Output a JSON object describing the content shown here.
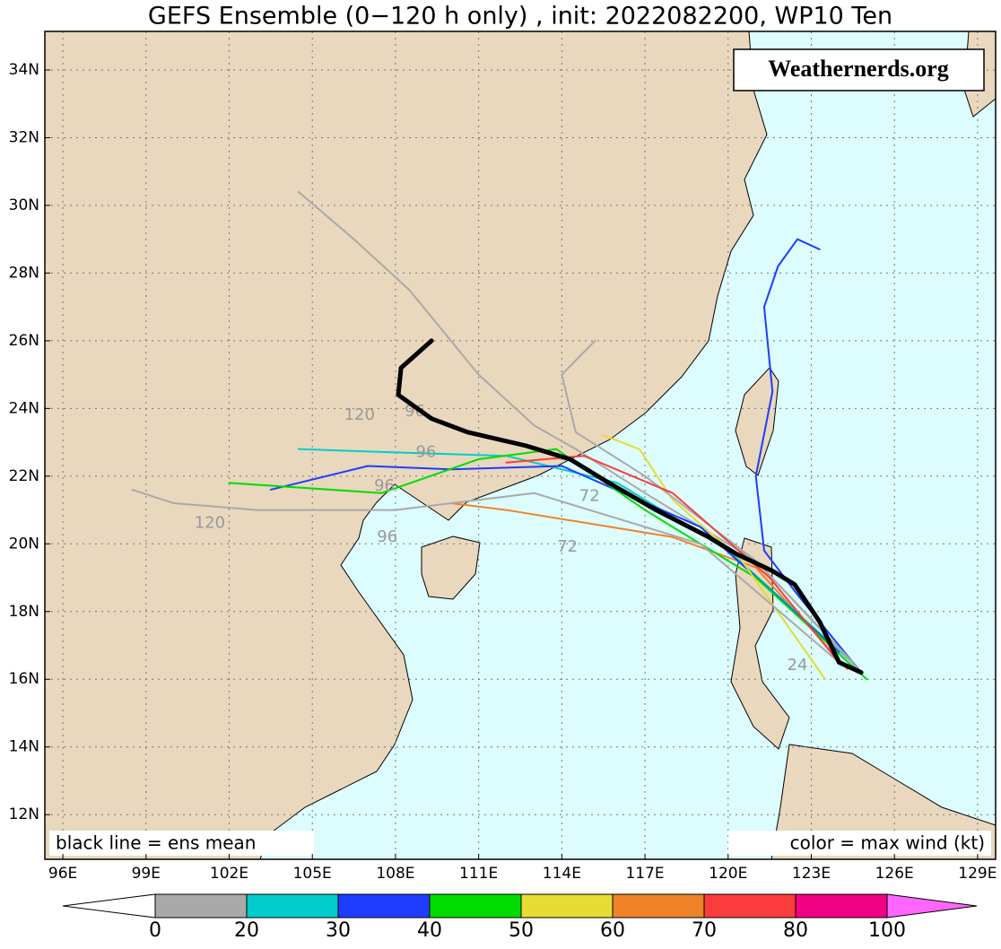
{
  "map": {
    "title": "GEFS Ensemble (0−120 h only) , init: 2022082200, WP10 Ten",
    "watermark": "Weathernerds.org",
    "note_left": "black line = ens mean",
    "note_right": "color = max wind (kt)",
    "xlim": [
      95.35,
      129.65
    ],
    "ylim": [
      10.68,
      35.14
    ],
    "xticks": [
      {
        "value": 96,
        "label": "96E"
      },
      {
        "value": 99,
        "label": "99E"
      },
      {
        "value": 102,
        "label": "102E"
      },
      {
        "value": 105,
        "label": "105E"
      },
      {
        "value": 108,
        "label": "108E"
      },
      {
        "value": 111,
        "label": "111E"
      },
      {
        "value": 114,
        "label": "114E"
      },
      {
        "value": 117,
        "label": "117E"
      },
      {
        "value": 120,
        "label": "120E"
      },
      {
        "value": 123,
        "label": "123E"
      },
      {
        "value": 126,
        "label": "126E"
      },
      {
        "value": 129,
        "label": "129E"
      }
    ],
    "yticks": [
      {
        "value": 12,
        "label": "12N"
      },
      {
        "value": 14,
        "label": "14N"
      },
      {
        "value": 16,
        "label": "16N"
      },
      {
        "value": 18,
        "label": "18N"
      },
      {
        "value": 20,
        "label": "20N"
      },
      {
        "value": 22,
        "label": "22N"
      },
      {
        "value": 24,
        "label": "24N"
      },
      {
        "value": 26,
        "label": "26N"
      },
      {
        "value": 28,
        "label": "28N"
      },
      {
        "value": 30,
        "label": "30N"
      },
      {
        "value": 32,
        "label": "32N"
      },
      {
        "value": 34,
        "label": "34N"
      }
    ],
    "grid": true,
    "mean_track": {
      "color": "#000000",
      "lon": [
        124.8,
        124.0,
        123.3,
        122.4,
        121.6,
        120.3,
        119.3,
        117.4,
        115.7,
        114.3,
        112.7,
        110.6,
        109.3,
        108.1,
        108.2,
        109.3
      ],
      "lat": [
        16.2,
        16.5,
        17.7,
        18.8,
        19.2,
        19.7,
        20.2,
        21.0,
        21.8,
        22.5,
        22.9,
        23.3,
        23.7,
        24.4,
        25.2,
        26.0
      ]
    },
    "members": [
      {
        "color": "#1e3cff",
        "lon": [
          124.8,
          122.5,
          121.3,
          121.0,
          121.6,
          121.3,
          121.8,
          122.5,
          123.3
        ],
        "lat": [
          16.2,
          18.5,
          19.8,
          22.0,
          24.5,
          27.0,
          28.2,
          29.0,
          28.7
        ]
      },
      {
        "color": "#a9a9a9",
        "lon": [
          124.5,
          121.0,
          117.0,
          114.5,
          113.0,
          111.0,
          108.5,
          106.5,
          104.5
        ],
        "lat": [
          16.5,
          19.5,
          21.5,
          22.8,
          23.5,
          25.0,
          27.5,
          29.0,
          30.4
        ]
      },
      {
        "color": "#f08228",
        "lon": [
          124.3,
          121.0,
          118.0,
          115.0,
          112.0,
          110.0
        ],
        "lat": [
          16.3,
          19.3,
          20.2,
          20.6,
          21.0,
          21.2
        ]
      },
      {
        "color": "#00cccc",
        "lon": [
          124.6,
          120.0,
          116.0,
          112.0,
          108.0,
          104.5
        ],
        "lat": [
          16.4,
          19.8,
          21.8,
          22.6,
          22.7,
          22.8
        ]
      },
      {
        "color": "#1e3cff",
        "lon": [
          124.0,
          119.0,
          114.0,
          110.0,
          107.0,
          103.5
        ],
        "lat": [
          16.8,
          20.5,
          22.3,
          22.2,
          22.3,
          21.6
        ]
      },
      {
        "color": "#00dc00",
        "lon": [
          125.0,
          121.0,
          117.0,
          113.8,
          111.0,
          107.5,
          102.0
        ],
        "lat": [
          16.0,
          19.0,
          21.0,
          22.8,
          22.5,
          21.5,
          21.8
        ]
      },
      {
        "color": "#e6dc32",
        "lon": [
          123.5,
          120.5,
          118.0,
          116.8,
          115.5
        ],
        "lat": [
          16.0,
          19.5,
          21.3,
          22.8,
          23.2
        ]
      },
      {
        "color": "#a9a9a9",
        "lon": [
          124.0,
          119.0,
          113.0,
          108.0,
          103.0,
          100.0,
          98.5
        ],
        "lat": [
          16.5,
          20.0,
          21.5,
          21.0,
          21.0,
          21.2,
          21.6
        ]
      },
      {
        "color": "#a9a9a9",
        "lon": [
          124.8,
          121.0,
          117.0,
          114.5,
          114.0,
          115.2
        ],
        "lat": [
          16.2,
          19.5,
          22.0,
          23.3,
          25.0,
          26.0
        ]
      },
      {
        "color": "#fa3c3c",
        "lon": [
          124.0,
          121.5,
          118.0,
          114.8,
          112.0
        ],
        "lat": [
          16.5,
          19.0,
          21.5,
          22.6,
          22.4
        ]
      }
    ],
    "hour_labels": [
      {
        "text": "120",
        "lon": 106.7,
        "lat": 23.8
      },
      {
        "text": "96",
        "lon": 108.7,
        "lat": 23.9
      },
      {
        "text": "96",
        "lon": 109.1,
        "lat": 22.7
      },
      {
        "text": "96",
        "lon": 107.6,
        "lat": 21.7
      },
      {
        "text": "120",
        "lon": 101.3,
        "lat": 20.6
      },
      {
        "text": "96",
        "lon": 107.7,
        "lat": 20.2
      },
      {
        "text": "72",
        "lon": 114.2,
        "lat": 19.9
      },
      {
        "text": "72",
        "lon": 115.0,
        "lat": 21.4
      },
      {
        "text": "24",
        "lon": 122.5,
        "lat": 16.4
      }
    ],
    "colorbar": {
      "ticks": [
        0,
        20,
        30,
        40,
        50,
        60,
        70,
        80,
        100
      ],
      "colors": [
        "#a9a9a9",
        "#00cccc",
        "#1e3cff",
        "#00dc00",
        "#e6dc32",
        "#f08228",
        "#fa3c3c",
        "#f00082"
      ],
      "under_color": "#ffffff",
      "over_color": "#ff66ff"
    }
  }
}
